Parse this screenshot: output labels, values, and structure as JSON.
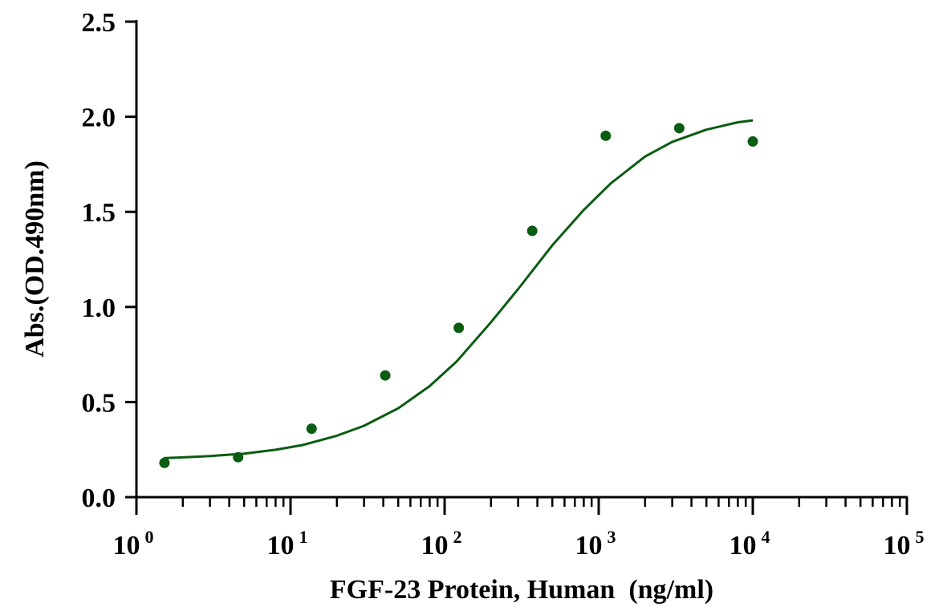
{
  "chart_data": {
    "type": "scatter",
    "xlabel": "FGF-23 Protein, Human  (ng/ml)",
    "ylabel": "Abs.(OD.490nm)",
    "x_scale": "log10",
    "xlim": [
      1,
      100000
    ],
    "ylim": [
      0,
      2.5
    ],
    "y_ticks": [
      "0.0",
      "0.5",
      "1.0",
      "1.5",
      "2.0",
      "2.5"
    ],
    "x_ticks": [
      {
        "base": "10",
        "exp": "0"
      },
      {
        "base": "10",
        "exp": "1"
      },
      {
        "base": "10",
        "exp": "2"
      },
      {
        "base": "10",
        "exp": "3"
      },
      {
        "base": "10",
        "exp": "4"
      },
      {
        "base": "10",
        "exp": "5"
      }
    ],
    "grid": false,
    "color": "#0a5c12",
    "series": [
      {
        "x": [
          1.52,
          4.57,
          13.7,
          41.2,
          123.5,
          370.4,
          1111,
          3333,
          10000
        ],
        "y": [
          0.18,
          0.21,
          0.36,
          0.64,
          0.89,
          1.4,
          1.9,
          1.94,
          1.87
        ]
      }
    ],
    "fit_curve": {
      "type": "4PL",
      "x": [
        1.5,
        2,
        3,
        5,
        8,
        12,
        20,
        30,
        50,
        80,
        120,
        200,
        300,
        500,
        800,
        1200,
        2000,
        3000,
        5000,
        8000,
        10000
      ],
      "y": [
        0.205,
        0.209,
        0.216,
        0.229,
        0.249,
        0.274,
        0.323,
        0.375,
        0.467,
        0.584,
        0.714,
        0.92,
        1.094,
        1.324,
        1.51,
        1.65,
        1.791,
        1.868,
        1.932,
        1.971,
        1.981
      ]
    }
  }
}
